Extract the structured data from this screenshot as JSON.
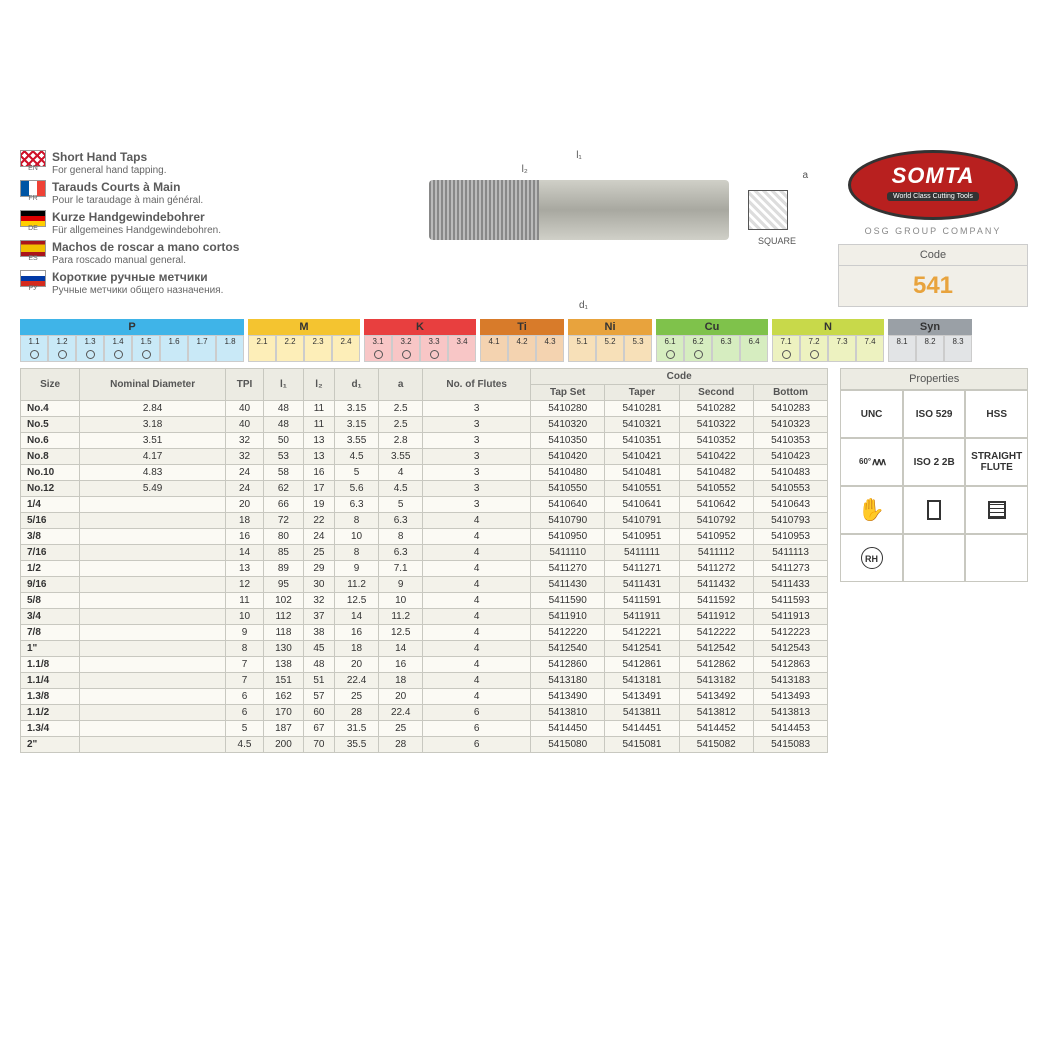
{
  "brand": {
    "name": "SOMTA",
    "tagline": "World Class Cutting Tools",
    "group": "OSG GROUP COMPANY"
  },
  "code": {
    "label": "Code",
    "value": "541"
  },
  "languages": [
    {
      "code": "EN",
      "flag": "en",
      "title": "Short Hand Taps",
      "sub": "For general hand tapping."
    },
    {
      "code": "FR",
      "flag": "fr",
      "title": "Tarauds Courts à Main",
      "sub": "Pour le taraudage à main général."
    },
    {
      "code": "DE",
      "flag": "de",
      "title": "Kurze Handgewindebohrer",
      "sub": "Für allgemeines Handgewindebohren."
    },
    {
      "code": "ES",
      "flag": "es",
      "title": "Machos de roscar a mano cortos",
      "sub": "Para roscado manual general."
    },
    {
      "code": "РУ",
      "flag": "ru",
      "title": "Короткие ручные метчики",
      "sub": "Ручные метчики общего назначения."
    }
  ],
  "diagram": {
    "l1": "l₁",
    "l2": "l₂",
    "d1": "d₁",
    "a": "a",
    "square": "SQUARE"
  },
  "materials": [
    {
      "label": "P",
      "head_bg": "#3fb4e8",
      "cell_bg": "#c9e9f7",
      "cells": [
        "1.1",
        "1.2",
        "1.3",
        "1.4",
        "1.5",
        "1.6",
        "1.7",
        "1.8"
      ],
      "marks": [
        true,
        true,
        true,
        true,
        true,
        false,
        false,
        false
      ]
    },
    {
      "label": "M",
      "head_bg": "#f4c430",
      "cell_bg": "#fdeeb8",
      "cells": [
        "2.1",
        "2.2",
        "2.3",
        "2.4"
      ],
      "marks": [
        false,
        false,
        false,
        false
      ]
    },
    {
      "label": "K",
      "head_bg": "#e83f3f",
      "cell_bg": "#f8c6c6",
      "cells": [
        "3.1",
        "3.2",
        "3.3",
        "3.4"
      ],
      "marks": [
        true,
        true,
        true,
        false
      ]
    },
    {
      "label": "Ti",
      "head_bg": "#d87b2a",
      "cell_bg": "#f4d3b0",
      "cells": [
        "4.1",
        "4.2",
        "4.3"
      ],
      "marks": [
        false,
        false,
        false
      ]
    },
    {
      "label": "Ni",
      "head_bg": "#e8a33d",
      "cell_bg": "#f7e0b8",
      "cells": [
        "5.1",
        "5.2",
        "5.3"
      ],
      "marks": [
        false,
        false,
        false
      ]
    },
    {
      "label": "Cu",
      "head_bg": "#7fc24b",
      "cell_bg": "#d6edc0",
      "cells": [
        "6.1",
        "6.2",
        "6.3",
        "6.4"
      ],
      "marks": [
        true,
        true,
        false,
        false
      ]
    },
    {
      "label": "N",
      "head_bg": "#c8d94a",
      "cell_bg": "#edf2c0",
      "cells": [
        "7.1",
        "7.2",
        "7.3",
        "7.4"
      ],
      "marks": [
        true,
        true,
        false,
        false
      ]
    },
    {
      "label": "Syn",
      "head_bg": "#9aa0a6",
      "cell_bg": "#e2e4e6",
      "cells": [
        "8.1",
        "8.2",
        "8.3"
      ],
      "marks": [
        false,
        false,
        false
      ]
    }
  ],
  "table": {
    "headers_top": [
      "Size",
      "Nominal Diameter",
      "TPI",
      "l₁",
      "l₂",
      "d₁",
      "a",
      "No. of Flutes",
      "Code"
    ],
    "code_sub": [
      "Tap Set",
      "Taper",
      "Second",
      "Bottom"
    ],
    "rows": [
      [
        "No.4",
        "2.84",
        "40",
        "48",
        "11",
        "3.15",
        "2.5",
        "3",
        "5410280",
        "5410281",
        "5410282",
        "5410283"
      ],
      [
        "No.5",
        "3.18",
        "40",
        "48",
        "11",
        "3.15",
        "2.5",
        "3",
        "5410320",
        "5410321",
        "5410322",
        "5410323"
      ],
      [
        "No.6",
        "3.51",
        "32",
        "50",
        "13",
        "3.55",
        "2.8",
        "3",
        "5410350",
        "5410351",
        "5410352",
        "5410353"
      ],
      [
        "No.8",
        "4.17",
        "32",
        "53",
        "13",
        "4.5",
        "3.55",
        "3",
        "5410420",
        "5410421",
        "5410422",
        "5410423"
      ],
      [
        "No.10",
        "4.83",
        "24",
        "58",
        "16",
        "5",
        "4",
        "3",
        "5410480",
        "5410481",
        "5410482",
        "5410483"
      ],
      [
        "No.12",
        "5.49",
        "24",
        "62",
        "17",
        "5.6",
        "4.5",
        "3",
        "5410550",
        "5410551",
        "5410552",
        "5410553"
      ],
      [
        "1/4",
        "",
        "20",
        "66",
        "19",
        "6.3",
        "5",
        "3",
        "5410640",
        "5410641",
        "5410642",
        "5410643"
      ],
      [
        "5/16",
        "",
        "18",
        "72",
        "22",
        "8",
        "6.3",
        "4",
        "5410790",
        "5410791",
        "5410792",
        "5410793"
      ],
      [
        "3/8",
        "",
        "16",
        "80",
        "24",
        "10",
        "8",
        "4",
        "5410950",
        "5410951",
        "5410952",
        "5410953"
      ],
      [
        "7/16",
        "",
        "14",
        "85",
        "25",
        "8",
        "6.3",
        "4",
        "5411110",
        "5411111",
        "5411112",
        "5411113"
      ],
      [
        "1/2",
        "",
        "13",
        "89",
        "29",
        "9",
        "7.1",
        "4",
        "5411270",
        "5411271",
        "5411272",
        "5411273"
      ],
      [
        "9/16",
        "",
        "12",
        "95",
        "30",
        "11.2",
        "9",
        "4",
        "5411430",
        "5411431",
        "5411432",
        "5411433"
      ],
      [
        "5/8",
        "",
        "11",
        "102",
        "32",
        "12.5",
        "10",
        "4",
        "5411590",
        "5411591",
        "5411592",
        "5411593"
      ],
      [
        "3/4",
        "",
        "10",
        "112",
        "37",
        "14",
        "11.2",
        "4",
        "5411910",
        "5411911",
        "5411912",
        "5411913"
      ],
      [
        "7/8",
        "",
        "9",
        "118",
        "38",
        "16",
        "12.5",
        "4",
        "5412220",
        "5412221",
        "5412222",
        "5412223"
      ],
      [
        "1\"",
        "",
        "8",
        "130",
        "45",
        "18",
        "14",
        "4",
        "5412540",
        "5412541",
        "5412542",
        "5412543"
      ],
      [
        "1.1/8",
        "",
        "7",
        "138",
        "48",
        "20",
        "16",
        "4",
        "5412860",
        "5412861",
        "5412862",
        "5412863"
      ],
      [
        "1.1/4",
        "",
        "7",
        "151",
        "51",
        "22.4",
        "18",
        "4",
        "5413180",
        "5413181",
        "5413182",
        "5413183"
      ],
      [
        "1.3/8",
        "",
        "6",
        "162",
        "57",
        "25",
        "20",
        "4",
        "5413490",
        "5413491",
        "5413492",
        "5413493"
      ],
      [
        "1.1/2",
        "",
        "6",
        "170",
        "60",
        "28",
        "22.4",
        "6",
        "5413810",
        "5413811",
        "5413812",
        "5413813"
      ],
      [
        "1.3/4",
        "",
        "5",
        "187",
        "67",
        "31.5",
        "25",
        "6",
        "5414450",
        "5414451",
        "5414452",
        "5414453"
      ],
      [
        "2\"",
        "",
        "4.5",
        "200",
        "70",
        "35.5",
        "28",
        "6",
        "5415080",
        "5415081",
        "5415082",
        "5415083"
      ]
    ]
  },
  "properties": {
    "label": "Properties",
    "cells": [
      "UNC",
      "ISO 529",
      "HSS",
      "60°",
      "ISO 2 2B",
      "STRAIGHT FLUTE",
      "✋",
      "▯",
      "◻",
      "RH",
      "",
      ""
    ]
  }
}
